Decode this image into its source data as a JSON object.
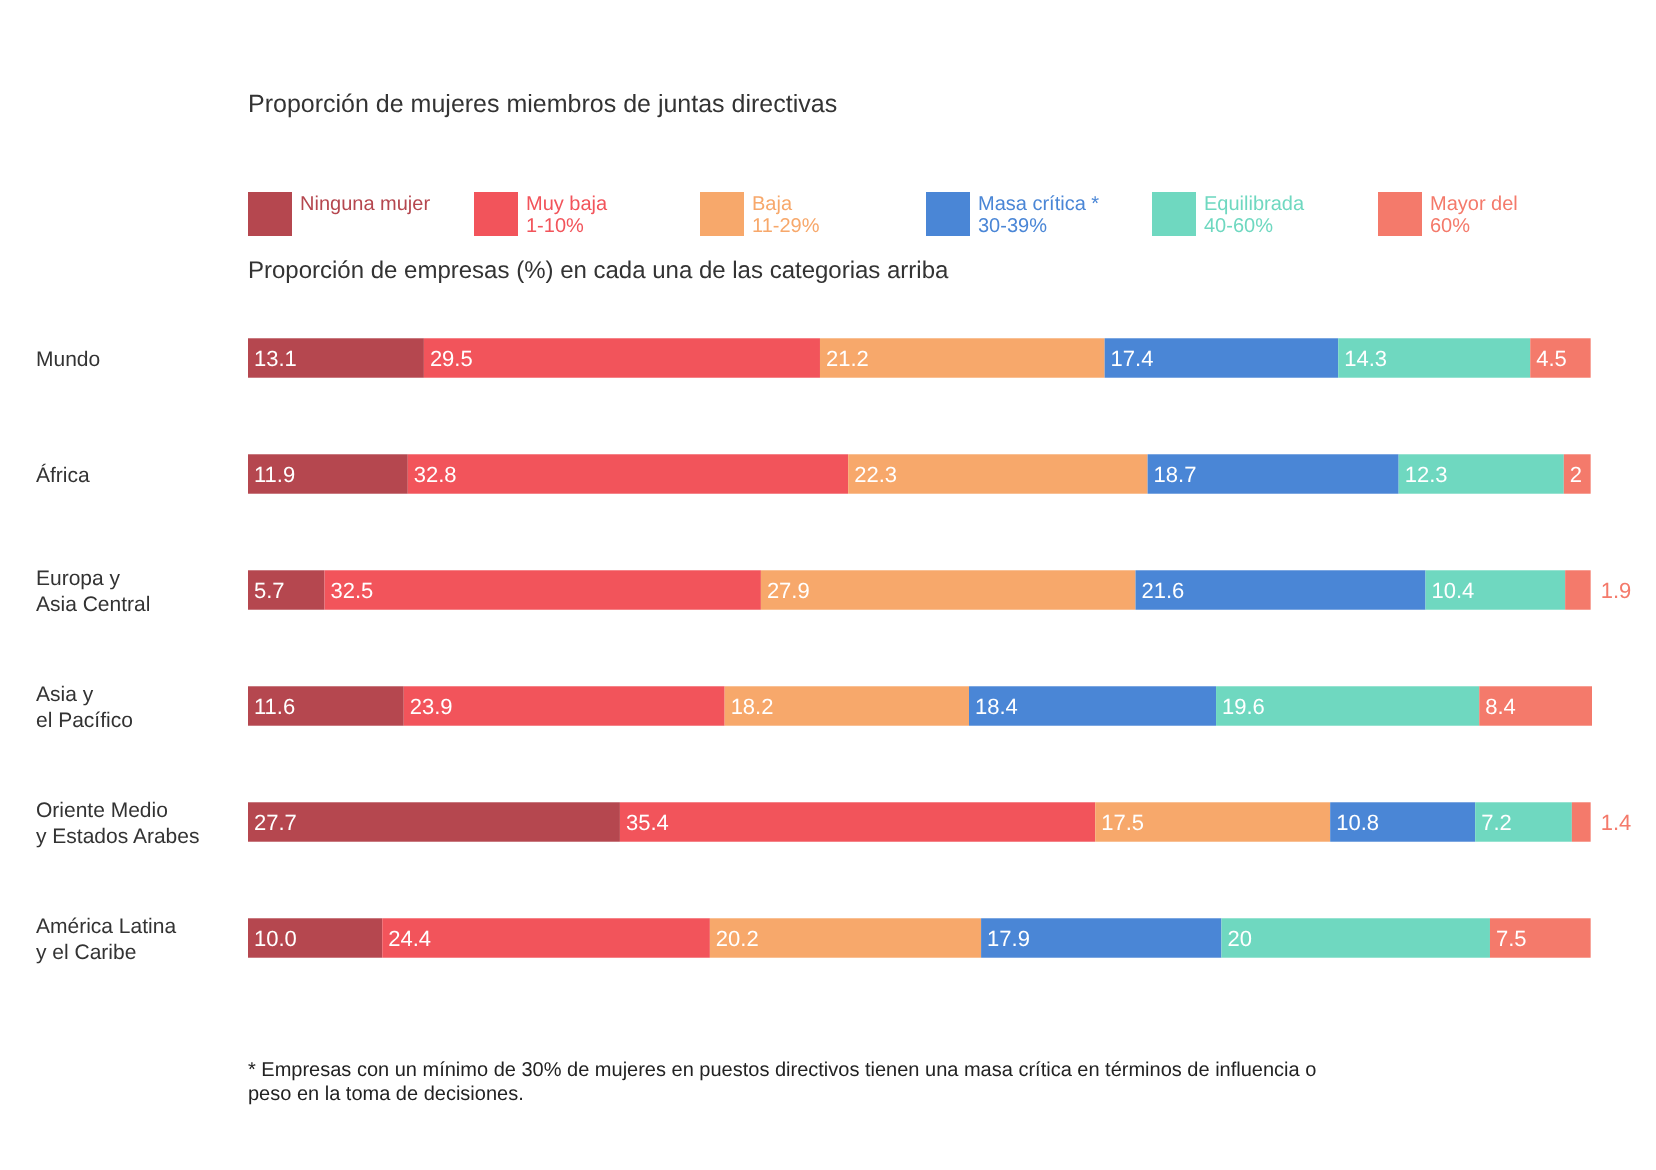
{
  "chart_data": {
    "type": "bar",
    "orientation": "horizontal",
    "stacked": true,
    "data_labels": true,
    "legend": "top",
    "title": "Proporción de mujeres miembros de juntas directivas",
    "subtitle": "Proporción de empresas (%) en cada una de las categorias arriba",
    "categories": [
      "Mundo",
      "África",
      "Europa y\nAsia Central",
      "Asia y\nel Pacífico",
      "Oriente Medio\ny Estados Arabes",
      "América Latina\ny el Caribe"
    ],
    "series": [
      {
        "name": "Ninguna mujer",
        "color": "#b5474f",
        "values": [
          13.1,
          11.9,
          5.7,
          11.6,
          27.7,
          10.0
        ],
        "value_labels": [
          "13.1",
          "11.9",
          "5.7",
          "11.6",
          "27.7",
          "10.0"
        ]
      },
      {
        "name": "Muy baja\n1-10%",
        "color": "#f2545b",
        "values": [
          29.5,
          32.8,
          32.5,
          23.9,
          35.4,
          24.4
        ]
      },
      {
        "name": "Baja\n11-29%",
        "color": "#f7a86b",
        "values": [
          21.2,
          22.3,
          27.9,
          18.2,
          17.5,
          20.2
        ]
      },
      {
        "name": "Masa crítica *\n30-39%",
        "color": "#4a86d6",
        "values": [
          17.4,
          18.7,
          21.6,
          18.4,
          10.8,
          17.9
        ]
      },
      {
        "name": "Equilibrada\n40-60%",
        "color": "#6fd8c0",
        "values": [
          14.3,
          12.3,
          10.4,
          19.6,
          7.2,
          20
        ]
      },
      {
        "name": "Mayor del\n60%",
        "color": "#f47a6b",
        "values": [
          4.5,
          2,
          1.9,
          8.4,
          1.4,
          7.5
        ]
      }
    ],
    "annotations": [
      "* Empresas con un mínimo de 30% de mujeres en puestos directivos tienen una masa crítica en términos de influencia o peso en la toma de decisiones."
    ]
  }
}
